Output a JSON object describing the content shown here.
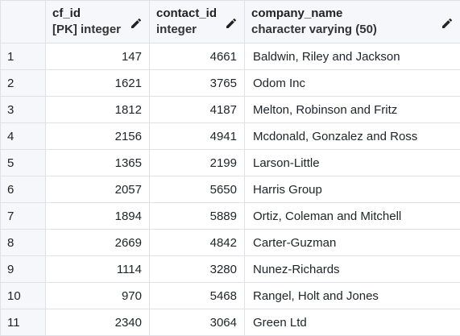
{
  "columns": [
    {
      "name": "cf_id",
      "type": "[PK] integer"
    },
    {
      "name": "contact_id",
      "type": "integer"
    },
    {
      "name": "company_name",
      "type": "character varying (50)"
    }
  ],
  "rows": [
    {
      "n": "1",
      "cf_id": "147",
      "contact_id": "4661",
      "company_name": "Baldwin, Riley and Jackson"
    },
    {
      "n": "2",
      "cf_id": "1621",
      "contact_id": "3765",
      "company_name": "Odom Inc"
    },
    {
      "n": "3",
      "cf_id": "1812",
      "contact_id": "4187",
      "company_name": "Melton, Robinson and Fritz"
    },
    {
      "n": "4",
      "cf_id": "2156",
      "contact_id": "4941",
      "company_name": "Mcdonald, Gonzalez and Ross"
    },
    {
      "n": "5",
      "cf_id": "1365",
      "contact_id": "2199",
      "company_name": "Larson-Little"
    },
    {
      "n": "6",
      "cf_id": "2057",
      "contact_id": "5650",
      "company_name": "Harris Group"
    },
    {
      "n": "7",
      "cf_id": "1894",
      "contact_id": "5889",
      "company_name": "Ortiz, Coleman and Mitchell"
    },
    {
      "n": "8",
      "cf_id": "2669",
      "contact_id": "4842",
      "company_name": "Carter-Guzman"
    },
    {
      "n": "9",
      "cf_id": "1114",
      "contact_id": "3280",
      "company_name": "Nunez-Richards"
    },
    {
      "n": "10",
      "cf_id": "970",
      "contact_id": "5468",
      "company_name": "Rangel, Holt and Jones"
    },
    {
      "n": "11",
      "cf_id": "2340",
      "contact_id": "3064",
      "company_name": "Green Ltd"
    }
  ],
  "icons": {
    "edit": "pencil-icon"
  },
  "colors": {
    "header_bg": "#f5f7fa",
    "border": "#dee2e6"
  }
}
